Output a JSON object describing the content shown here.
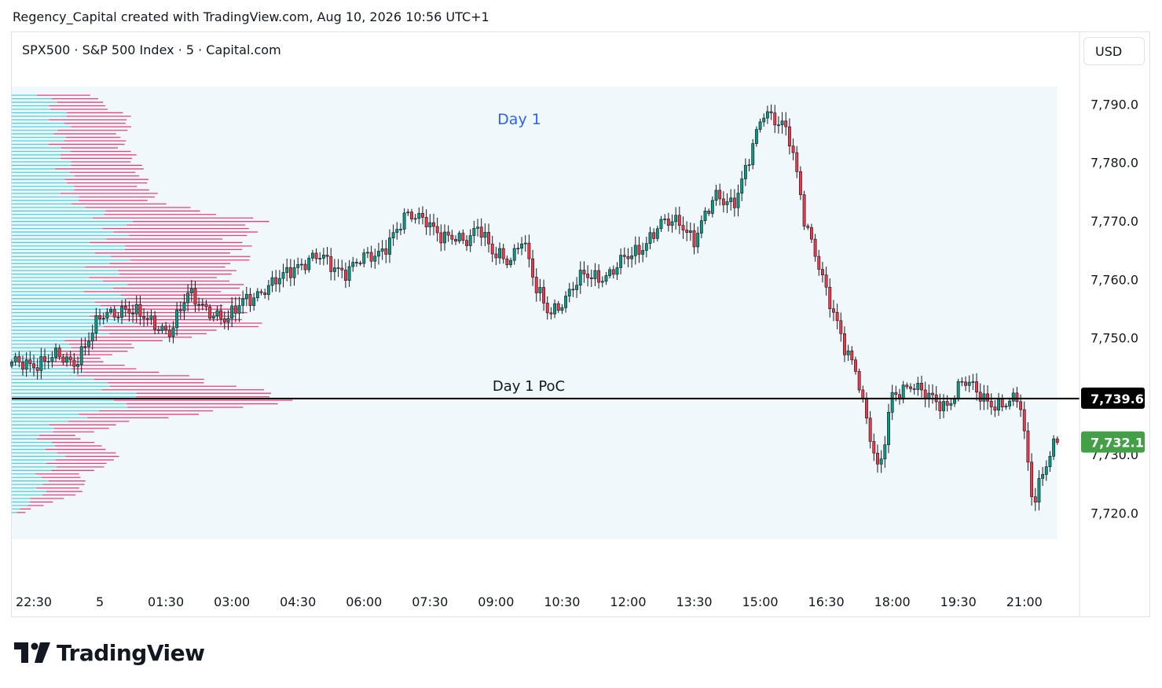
{
  "header": {
    "caption": "Regency_Capital created with TradingView.com, Aug 10, 2026 10:56 UTC+1",
    "symbol": "SPX500 · S&P 500 Index · 5 · Capital.com",
    "currency": "USD"
  },
  "brand": {
    "name": "TradingView"
  },
  "colors": {
    "up": "#089981",
    "down": "#f23645",
    "session_bg": "#f0f8fc",
    "profile_up": "#4dd0e1",
    "profile_down": "#ec407a",
    "poc_line": "#000000",
    "poc_badge": "#000000",
    "last_badge": "#43a047"
  },
  "chart_data": {
    "type": "candlestick",
    "title": "",
    "xlabel": "",
    "ylabel": "",
    "ylim": [
      7715.5,
      7793.0
    ],
    "y_ticks": [
      "7,790.0",
      "7,780.0",
      "7,770.0",
      "7,760.0",
      "7,750.0",
      "7,730.0",
      "7,720.0"
    ],
    "y_tick_values": [
      7790,
      7780,
      7770,
      7760,
      7750,
      7730,
      7720
    ],
    "x_ticks": [
      "22:30",
      "5",
      "01:30",
      "03:00",
      "04:30",
      "06:00",
      "07:30",
      "09:00",
      "10:30",
      "12:00",
      "13:30",
      "15:00",
      "16:30",
      "18:00",
      "19:30",
      "21:00"
    ],
    "x_tick_hours": [
      -1.5,
      0,
      1.5,
      3,
      4.5,
      6,
      7.5,
      9,
      10.5,
      12,
      13.5,
      15,
      16.5,
      18,
      19.5,
      21
    ],
    "x_range_hours": [
      -2.0,
      22.2
    ],
    "bar_interval_minutes": 5,
    "session": {
      "label": "Day 1",
      "start_hour": -2.0,
      "end_hour": 21.75
    },
    "poc": {
      "label": "Day 1 PoC",
      "value": 7739.6,
      "badge": "7,739.6"
    },
    "last_price": {
      "value": 7732.1,
      "badge": "7,732.1"
    },
    "price_path": [
      {
        "h": -2.0,
        "p": 7745.2
      },
      {
        "h": -1.0,
        "p": 7746.5
      },
      {
        "h": -0.6,
        "p": 7745.8
      },
      {
        "h": 0.0,
        "p": 7753.0
      },
      {
        "h": 0.6,
        "p": 7755.5
      },
      {
        "h": 1.1,
        "p": 7752.5
      },
      {
        "h": 1.6,
        "p": 7751.5
      },
      {
        "h": 2.0,
        "p": 7757.0
      },
      {
        "h": 2.5,
        "p": 7755.0
      },
      {
        "h": 2.9,
        "p": 7752.5
      },
      {
        "h": 3.3,
        "p": 7757.0
      },
      {
        "h": 3.9,
        "p": 7758.5
      },
      {
        "h": 4.4,
        "p": 7762.5
      },
      {
        "h": 5.0,
        "p": 7763.5
      },
      {
        "h": 5.6,
        "p": 7761.5
      },
      {
        "h": 6.3,
        "p": 7764.5
      },
      {
        "h": 7.0,
        "p": 7770.5
      },
      {
        "h": 7.4,
        "p": 7771.0
      },
      {
        "h": 7.8,
        "p": 7766.5
      },
      {
        "h": 8.3,
        "p": 7767.0
      },
      {
        "h": 8.6,
        "p": 7769.5
      },
      {
        "h": 8.9,
        "p": 7764.0
      },
      {
        "h": 9.3,
        "p": 7763.5
      },
      {
        "h": 9.6,
        "p": 7767.5
      },
      {
        "h": 9.9,
        "p": 7758.0
      },
      {
        "h": 10.2,
        "p": 7754.5
      },
      {
        "h": 10.6,
        "p": 7757.0
      },
      {
        "h": 11.0,
        "p": 7760.5
      },
      {
        "h": 11.6,
        "p": 7761.0
      },
      {
        "h": 12.2,
        "p": 7765.0
      },
      {
        "h": 12.7,
        "p": 7769.0
      },
      {
        "h": 13.2,
        "p": 7770.0
      },
      {
        "h": 13.5,
        "p": 7767.0
      },
      {
        "h": 14.0,
        "p": 7774.0
      },
      {
        "h": 14.4,
        "p": 7773.5
      },
      {
        "h": 14.7,
        "p": 7779.0
      },
      {
        "h": 15.1,
        "p": 7789.0
      },
      {
        "h": 15.5,
        "p": 7787.0
      },
      {
        "h": 15.7,
        "p": 7783.0
      },
      {
        "h": 16.0,
        "p": 7770.0
      },
      {
        "h": 16.3,
        "p": 7764.0
      },
      {
        "h": 16.6,
        "p": 7755.5
      },
      {
        "h": 16.9,
        "p": 7748.0
      },
      {
        "h": 17.2,
        "p": 7744.5
      },
      {
        "h": 17.4,
        "p": 7737.0
      },
      {
        "h": 17.7,
        "p": 7726.0
      },
      {
        "h": 18.0,
        "p": 7740.0
      },
      {
        "h": 18.4,
        "p": 7742.5
      },
      {
        "h": 18.8,
        "p": 7739.5
      },
      {
        "h": 19.2,
        "p": 7738.5
      },
      {
        "h": 19.6,
        "p": 7742.5
      },
      {
        "h": 20.0,
        "p": 7740.0
      },
      {
        "h": 20.5,
        "p": 7738.5
      },
      {
        "h": 20.9,
        "p": 7739.0
      },
      {
        "h": 21.2,
        "p": 7722.0
      },
      {
        "h": 21.4,
        "p": 7727.0
      },
      {
        "h": 21.75,
        "p": 7732.1
      }
    ],
    "volume_profile": {
      "price_step": 0.6,
      "levels": [
        {
          "p": 7790.5,
          "w": 0.3
        },
        {
          "p": 7787.5,
          "w": 0.42
        },
        {
          "p": 7784.0,
          "w": 0.38
        },
        {
          "p": 7780.0,
          "w": 0.44
        },
        {
          "p": 7776.0,
          "w": 0.47
        },
        {
          "p": 7773.0,
          "w": 0.52
        },
        {
          "p": 7770.0,
          "w": 0.88
        },
        {
          "p": 7767.0,
          "w": 0.8
        },
        {
          "p": 7764.0,
          "w": 0.82
        },
        {
          "p": 7761.0,
          "w": 0.75
        },
        {
          "p": 7758.0,
          "w": 0.8
        },
        {
          "p": 7755.0,
          "w": 0.78
        },
        {
          "p": 7752.0,
          "w": 0.86
        },
        {
          "p": 7749.0,
          "w": 0.46
        },
        {
          "p": 7746.0,
          "w": 0.3
        },
        {
          "p": 7743.5,
          "w": 0.6
        },
        {
          "p": 7741.0,
          "w": 0.86
        },
        {
          "p": 7739.6,
          "w": 1.0
        },
        {
          "p": 7738.0,
          "w": 0.82
        },
        {
          "p": 7735.5,
          "w": 0.4
        },
        {
          "p": 7733.0,
          "w": 0.22
        },
        {
          "p": 7731.0,
          "w": 0.35
        },
        {
          "p": 7729.0,
          "w": 0.37
        },
        {
          "p": 7726.5,
          "w": 0.24
        },
        {
          "p": 7724.0,
          "w": 0.26
        },
        {
          "p": 7722.0,
          "w": 0.16
        },
        {
          "p": 7720.5,
          "w": 0.05
        }
      ]
    }
  }
}
